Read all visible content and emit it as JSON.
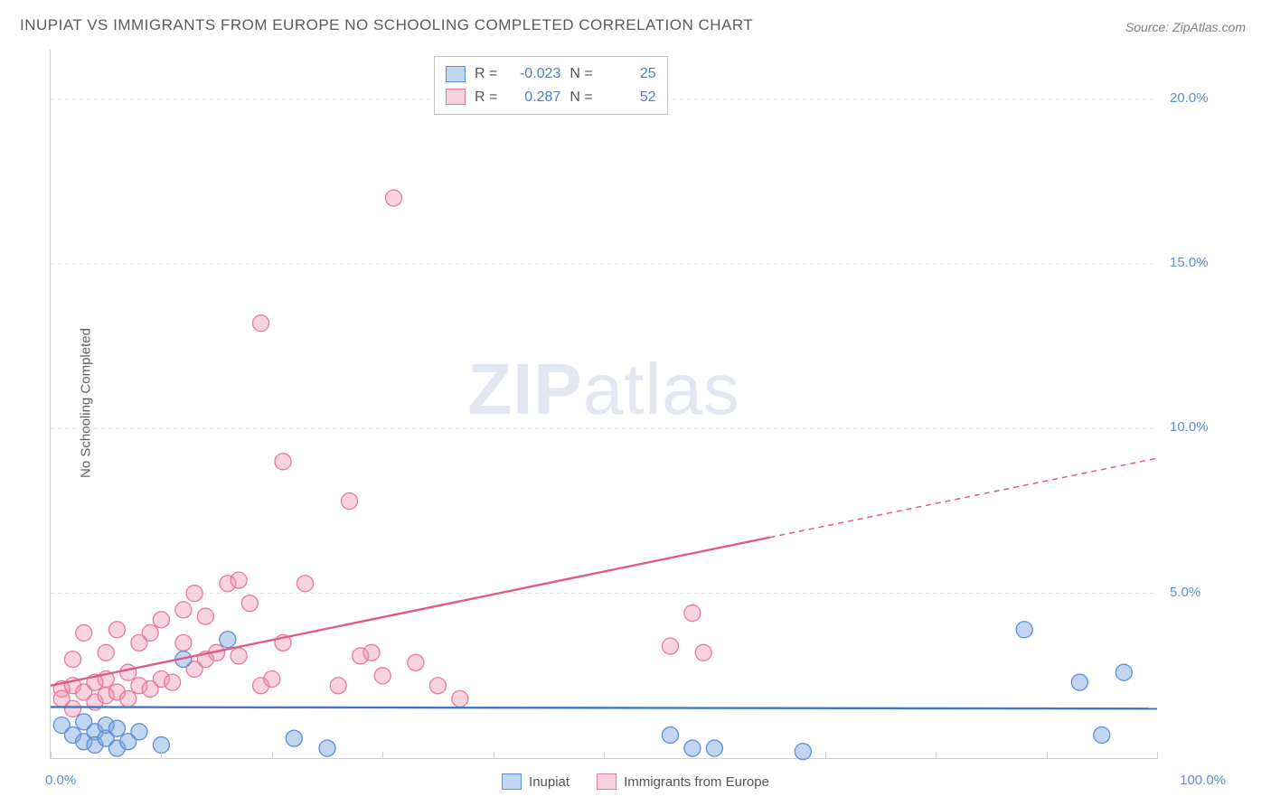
{
  "title": "INUPIAT VS IMMIGRANTS FROM EUROPE NO SCHOOLING COMPLETED CORRELATION CHART",
  "source": "Source: ZipAtlas.com",
  "y_axis_label": "No Schooling Completed",
  "watermark_bold": "ZIP",
  "watermark_rest": "atlas",
  "chart": {
    "type": "scatter",
    "xlim": [
      0,
      100
    ],
    "ylim": [
      0,
      21.5
    ],
    "x_tick_left": "0.0%",
    "x_tick_right": "100.0%",
    "x_tick_positions": [
      0,
      10,
      20,
      30,
      40,
      50,
      60,
      70,
      80,
      90,
      100
    ],
    "y_ticks": [
      {
        "v": 5.0,
        "label": "5.0%"
      },
      {
        "v": 10.0,
        "label": "10.0%"
      },
      {
        "v": 15.0,
        "label": "15.0%"
      },
      {
        "v": 20.0,
        "label": "20.0%"
      }
    ],
    "grid_color": "#e0e0e0",
    "background_color": "#ffffff",
    "series": {
      "inupiat": {
        "label": "Inupiat",
        "marker_fill": "rgba(120,165,225,0.45)",
        "marker_stroke": "#5b8fd6",
        "marker_r": 9,
        "trend_color": "#3b78c7",
        "trend_width": 2.4,
        "trend": {
          "x1": 0,
          "y1": 1.55,
          "x2": 100,
          "y2": 1.5
        },
        "R": "-0.023",
        "N": "25",
        "points": [
          [
            1,
            1.0
          ],
          [
            2,
            0.7
          ],
          [
            3,
            0.5
          ],
          [
            3,
            1.1
          ],
          [
            4,
            0.8
          ],
          [
            4,
            0.4
          ],
          [
            5,
            1.0
          ],
          [
            5,
            0.6
          ],
          [
            6,
            0.9
          ],
          [
            6,
            0.3
          ],
          [
            7,
            0.5
          ],
          [
            8,
            0.8
          ],
          [
            10,
            0.4
          ],
          [
            12,
            3.0
          ],
          [
            16,
            3.6
          ],
          [
            22,
            0.6
          ],
          [
            25,
            0.3
          ],
          [
            56,
            0.7
          ],
          [
            58,
            0.3
          ],
          [
            60,
            0.3
          ],
          [
            68,
            0.2
          ],
          [
            88,
            3.9
          ],
          [
            93,
            2.3
          ],
          [
            95,
            0.7
          ],
          [
            97,
            2.6
          ]
        ]
      },
      "europe": {
        "label": "Immigrants from Europe",
        "marker_fill": "rgba(240,145,175,0.40)",
        "marker_stroke": "#e67a9e",
        "marker_r": 9,
        "trend_color": "#e15b87",
        "trend_width": 2.4,
        "trend_solid": {
          "x1": 0,
          "y1": 2.2,
          "x2": 65,
          "y2": 6.7
        },
        "trend_dash": {
          "x1": 65,
          "y1": 6.7,
          "x2": 100,
          "y2": 9.1
        },
        "dash_pattern": "6,5",
        "R": "0.287",
        "N": "52",
        "points": [
          [
            1,
            2.1
          ],
          [
            1,
            1.8
          ],
          [
            2,
            2.2
          ],
          [
            2,
            3.0
          ],
          [
            2,
            1.5
          ],
          [
            3,
            2.0
          ],
          [
            3,
            3.8
          ],
          [
            4,
            2.3
          ],
          [
            4,
            1.7
          ],
          [
            5,
            2.4
          ],
          [
            5,
            1.9
          ],
          [
            5,
            3.2
          ],
          [
            6,
            2.0
          ],
          [
            6,
            3.9
          ],
          [
            7,
            2.6
          ],
          [
            7,
            1.8
          ],
          [
            8,
            2.2
          ],
          [
            8,
            3.5
          ],
          [
            9,
            3.8
          ],
          [
            9,
            2.1
          ],
          [
            10,
            2.4
          ],
          [
            10,
            4.2
          ],
          [
            11,
            2.3
          ],
          [
            12,
            3.5
          ],
          [
            12,
            4.5
          ],
          [
            13,
            2.7
          ],
          [
            13,
            5.0
          ],
          [
            14,
            3.0
          ],
          [
            14,
            4.3
          ],
          [
            15,
            3.2
          ],
          [
            16,
            5.3
          ],
          [
            17,
            3.1
          ],
          [
            17,
            5.4
          ],
          [
            18,
            4.7
          ],
          [
            19,
            2.2
          ],
          [
            19,
            13.2
          ],
          [
            20,
            2.4
          ],
          [
            21,
            3.5
          ],
          [
            21,
            9.0
          ],
          [
            23,
            5.3
          ],
          [
            26,
            2.2
          ],
          [
            27,
            7.8
          ],
          [
            28,
            3.1
          ],
          [
            29,
            3.2
          ],
          [
            30,
            2.5
          ],
          [
            31,
            17.0
          ],
          [
            33,
            2.9
          ],
          [
            35,
            2.2
          ],
          [
            37,
            1.8
          ],
          [
            56,
            3.4
          ],
          [
            58,
            4.4
          ],
          [
            59,
            3.2
          ]
        ]
      }
    },
    "info_box": {
      "R_label": "R =",
      "N_label": "N ="
    },
    "swatch_blue_fill": "rgba(120,165,225,0.45)",
    "swatch_blue_border": "#5b8fd6",
    "swatch_pink_fill": "rgba(240,145,175,0.40)",
    "swatch_pink_border": "#e67a9e"
  }
}
